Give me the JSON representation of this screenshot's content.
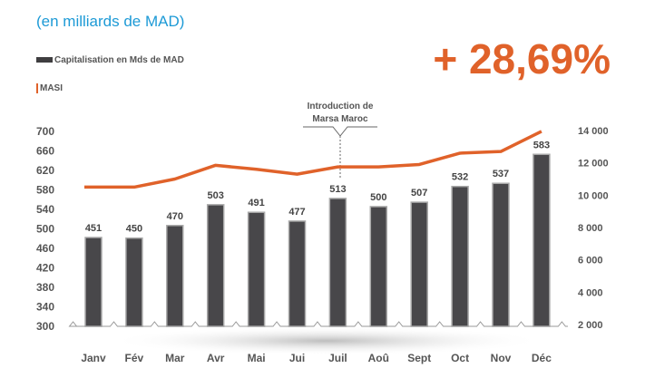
{
  "subtitle": "(en milliards de MAD)",
  "highlight": "+ 28,69%",
  "colors": {
    "bar": "#48474a",
    "line": "#e0622a",
    "subtitle": "#1d9ad6"
  },
  "chart_data": {
    "type": "bar+line",
    "categories": [
      "Janv",
      "Fév",
      "Mar",
      "Avr",
      "Mai",
      "Jui",
      "Juil",
      "Aoû",
      "Sept",
      "Oct",
      "Nov",
      "Déc"
    ],
    "series": [
      {
        "name": "Capitalisation en Mds de MAD",
        "type": "bar",
        "axis": "left",
        "values": [
          451,
          450,
          470,
          503,
          491,
          477,
          513,
          500,
          507,
          532,
          537,
          583
        ]
      },
      {
        "name": "MASI",
        "type": "line",
        "axis": "right",
        "values": [
          10500,
          10500,
          11000,
          11850,
          11600,
          11300,
          11750,
          11750,
          11900,
          12600,
          12700,
          13950
        ]
      }
    ],
    "left_axis": {
      "ticks": [
        "300",
        "340",
        "380",
        "420",
        "460",
        "500",
        "540",
        "580",
        "620",
        "660",
        "700"
      ],
      "range": [
        300,
        700
      ]
    },
    "right_axis": {
      "ticks": [
        "2 000",
        "4 000",
        "6 000",
        "8 000",
        "10 000",
        "12 000",
        "14 000"
      ],
      "range": [
        2000,
        14000
      ]
    },
    "annotation": {
      "text_line1": "Introduction de",
      "text_line2": "Marsa Maroc",
      "category": "Juil"
    },
    "legend": [
      "Capitalisation en Mds de MAD",
      "MASI"
    ],
    "legend_placement": "top-left"
  }
}
